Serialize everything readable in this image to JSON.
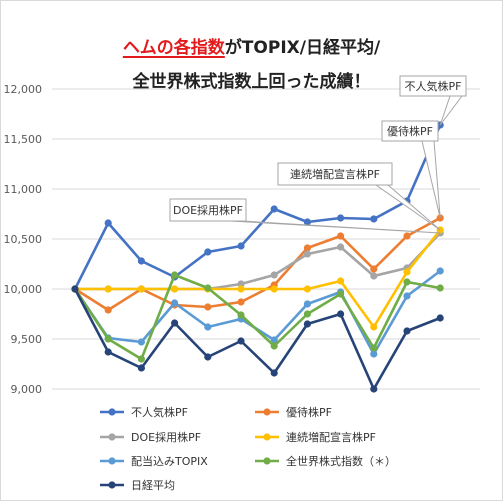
{
  "title": {
    "line1_em": "ヘムの各指数",
    "line1_rest": "がTOPIX/日経平均/",
    "line2": "全世界株式指数上回った成績！"
  },
  "chart_data": {
    "type": "line",
    "ylim": [
      9000,
      12000
    ],
    "yticks": [
      9000,
      9500,
      10000,
      10500,
      11000,
      11500,
      12000
    ],
    "ytick_labels": [
      "9,000",
      "9,500",
      "10,000",
      "10,500",
      "11,000",
      "11,500",
      "12,000"
    ],
    "grid": true,
    "legend_position": "bottom",
    "x": [
      1,
      2,
      3,
      4,
      5,
      6,
      7,
      8,
      9,
      10,
      11,
      12,
      13
    ],
    "series": [
      {
        "name": "不人気株PF",
        "color": "#4472c4",
        "values": [
          10000,
          10660,
          10280,
          10120,
          10370,
          10430,
          10800,
          10670,
          10710,
          10700,
          10880,
          11640,
          null
        ]
      },
      {
        "name": "優待株PF",
        "color": "#ed7d31",
        "values": [
          10000,
          9790,
          10000,
          9840,
          9820,
          9870,
          10040,
          10410,
          10530,
          10200,
          10530,
          10710,
          null
        ]
      },
      {
        "name": "DOE採用株PF",
        "color": "#a5a5a5",
        "values": [
          10000,
          10000,
          10000,
          10000,
          10000,
          10050,
          10140,
          10350,
          10420,
          10130,
          10210,
          10560,
          null
        ]
      },
      {
        "name": "連続増配宣言株PF",
        "color": "#ffc000",
        "values": [
          10000,
          10000,
          10000,
          10000,
          10000,
          10000,
          10000,
          10000,
          10080,
          9620,
          10170,
          10590,
          null
        ]
      },
      {
        "name": "配当込みTOPIX",
        "color": "#5b9bd5",
        "values": [
          10000,
          9510,
          9470,
          9860,
          9620,
          9700,
          9490,
          9850,
          9970,
          9350,
          9930,
          10180,
          null
        ]
      },
      {
        "name": "全世界株式指数（＊）",
        "color": "#70ad47",
        "values": [
          10000,
          9500,
          9300,
          10140,
          10010,
          9740,
          9430,
          9750,
          9950,
          9410,
          10070,
          10010,
          null
        ]
      },
      {
        "name": "日経平均",
        "color": "#264478",
        "values": [
          10000,
          9370,
          9210,
          9660,
          9320,
          9480,
          9160,
          9650,
          9750,
          9000,
          9580,
          9710,
          null
        ]
      }
    ],
    "callouts": [
      {
        "label": "不人気株PF",
        "series": 0
      },
      {
        "label": "優待株PF",
        "series": 1
      },
      {
        "label": "連続増配宣言株PF",
        "series": 3
      },
      {
        "label": "DOE採用株PF",
        "series": 2
      }
    ]
  }
}
